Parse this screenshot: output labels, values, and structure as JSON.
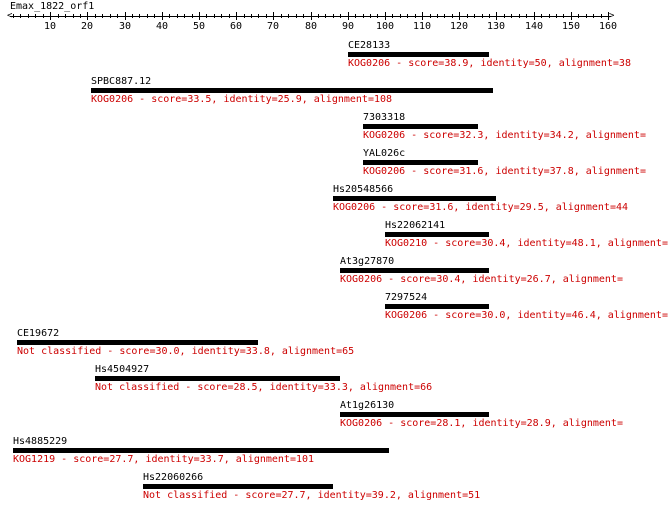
{
  "title": "Emax_1822_orf1",
  "axis": {
    "min": 0,
    "max": 160,
    "major_ticks": [
      10,
      20,
      30,
      40,
      50,
      60,
      70,
      80,
      90,
      100,
      110,
      120,
      130,
      140,
      150,
      160
    ],
    "minor_step": 2
  },
  "hits": [
    {
      "name": "CE28133",
      "start": 90,
      "end": 128,
      "annotation": "KOG0206 - score=38.9, identity=50, alignment=38",
      "classified": true
    },
    {
      "name": "SPBC887.12",
      "start": 21,
      "end": 129,
      "annotation": "KOG0206 - score=33.5, identity=25.9, alignment=108",
      "classified": true
    },
    {
      "name": "7303318",
      "start": 94,
      "end": 125,
      "annotation": "KOG0206 - score=32.3, identity=34.2, alignment=",
      "classified": true
    },
    {
      "name": "YAL026c",
      "start": 94,
      "end": 125,
      "annotation": "KOG0206 - score=31.6, identity=37.8, alignment=",
      "classified": true
    },
    {
      "name": "Hs20548566",
      "start": 86,
      "end": 130,
      "annotation": "KOG0206 - score=31.6, identity=29.5, alignment=44",
      "classified": true
    },
    {
      "name": "Hs22062141",
      "start": 100,
      "end": 128,
      "annotation": "KOG0210 - score=30.4, identity=48.1, alignment=",
      "classified": true
    },
    {
      "name": "At3g27870",
      "start": 88,
      "end": 128,
      "annotation": "KOG0206 - score=30.4, identity=26.7, alignment=",
      "classified": true
    },
    {
      "name": "7297524",
      "start": 100,
      "end": 128,
      "annotation": "KOG0206 - score=30.0, identity=46.4, alignment=",
      "classified": true
    },
    {
      "name": "CE19672",
      "start": 1,
      "end": 66,
      "annotation": "Not classified - score=30.0, identity=33.8, alignment=65",
      "classified": false
    },
    {
      "name": "Hs4504927",
      "start": 22,
      "end": 88,
      "annotation": "Not classified - score=28.5, identity=33.3, alignment=66",
      "classified": false
    },
    {
      "name": "At1g26130",
      "start": 88,
      "end": 128,
      "annotation": "KOG0206 - score=28.1, identity=28.9, alignment=",
      "classified": true
    },
    {
      "name": "Hs4885229",
      "start": 0,
      "end": 101,
      "annotation": "KOG1219 - score=27.7, identity=33.7, alignment=101",
      "classified": true
    },
    {
      "name": "Hs22060266",
      "start": 35,
      "end": 86,
      "annotation": "Not classified - score=27.7, identity=39.2, alignment=51",
      "classified": false
    }
  ],
  "colors": {
    "text": "#000000",
    "annotation": "#cc0000",
    "bar": "#000000"
  }
}
